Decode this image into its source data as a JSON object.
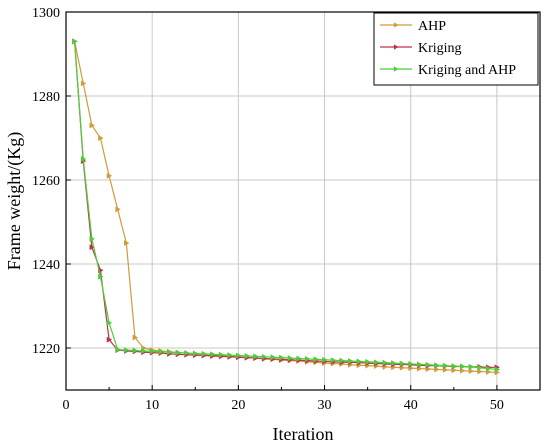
{
  "chart_data": {
    "type": "line",
    "xlabel": "Iteration",
    "ylabel": "Frame weight/(Kg)",
    "xlim": [
      0,
      55
    ],
    "ylim": [
      1210,
      1300
    ],
    "xticks": [
      0,
      10,
      20,
      30,
      40,
      50
    ],
    "yticks": [
      1220,
      1240,
      1260,
      1280,
      1300
    ],
    "grid": true,
    "legend_position": "top-right",
    "x": [
      1,
      2,
      3,
      4,
      5,
      6,
      7,
      8,
      9,
      10,
      11,
      12,
      13,
      14,
      15,
      16,
      17,
      18,
      19,
      20,
      21,
      22,
      23,
      24,
      25,
      26,
      27,
      28,
      29,
      30,
      31,
      32,
      33,
      34,
      35,
      36,
      37,
      38,
      39,
      40,
      41,
      42,
      43,
      44,
      45,
      46,
      47,
      48,
      49,
      50
    ],
    "series": [
      {
        "name": "AHP",
        "color": "#d19a3c",
        "marker": "triangle-right",
        "values": [
          1293,
          1283,
          1273,
          1270,
          1261,
          1253,
          1245,
          1222.5,
          1220,
          1219.5,
          1219.3,
          1219.1,
          1218.9,
          1218.8,
          1218.6,
          1218.5,
          1218.3,
          1218.2,
          1218.0,
          1217.9,
          1217.7,
          1217.6,
          1217.4,
          1217.3,
          1217.1,
          1217.0,
          1216.9,
          1216.7,
          1216.6,
          1216.4,
          1216.3,
          1216.2,
          1216.0,
          1215.9,
          1215.8,
          1215.7,
          1215.5,
          1215.4,
          1215.3,
          1215.2,
          1215.1,
          1215.0,
          1214.9,
          1214.8,
          1214.7,
          1214.6,
          1214.5,
          1214.4,
          1214.3,
          1214.2
        ]
      },
      {
        "name": "Kriging",
        "color": "#c0304a",
        "marker": "triangle-right",
        "values": [
          1293,
          1264.5,
          1244,
          1238.5,
          1222,
          1219.5,
          1219.3,
          1219.2,
          1219.0,
          1218.9,
          1218.8,
          1218.6,
          1218.5,
          1218.4,
          1218.3,
          1218.2,
          1218.1,
          1218.0,
          1217.9,
          1217.8,
          1217.7,
          1217.6,
          1217.5,
          1217.4,
          1217.3,
          1217.2,
          1217.1,
          1217.0,
          1216.9,
          1216.8,
          1216.7,
          1216.6,
          1216.6,
          1216.5,
          1216.4,
          1216.3,
          1216.2,
          1216.1,
          1216.1,
          1216.0,
          1215.9,
          1215.8,
          1215.8,
          1215.7,
          1215.6,
          1215.6,
          1215.5,
          1215.5,
          1215.4,
          1215.4
        ]
      },
      {
        "name": "Kriging and AHP",
        "color": "#4ccd3a",
        "marker": "triangle-right",
        "values": [
          1293,
          1265,
          1246,
          1237,
          1226,
          1219.6,
          1219.5,
          1219.4,
          1219.3,
          1219.2,
          1219.1,
          1219.0,
          1218.9,
          1218.8,
          1218.7,
          1218.6,
          1218.5,
          1218.4,
          1218.3,
          1218.2,
          1218.1,
          1218.0,
          1217.9,
          1217.8,
          1217.7,
          1217.6,
          1217.5,
          1217.4,
          1217.3,
          1217.2,
          1217.1,
          1217.0,
          1216.9,
          1216.8,
          1216.7,
          1216.6,
          1216.5,
          1216.4,
          1216.3,
          1216.2,
          1216.1,
          1216.0,
          1215.9,
          1215.8,
          1215.7,
          1215.6,
          1215.5,
          1215.3,
          1215.1,
          1214.9
        ]
      }
    ]
  }
}
